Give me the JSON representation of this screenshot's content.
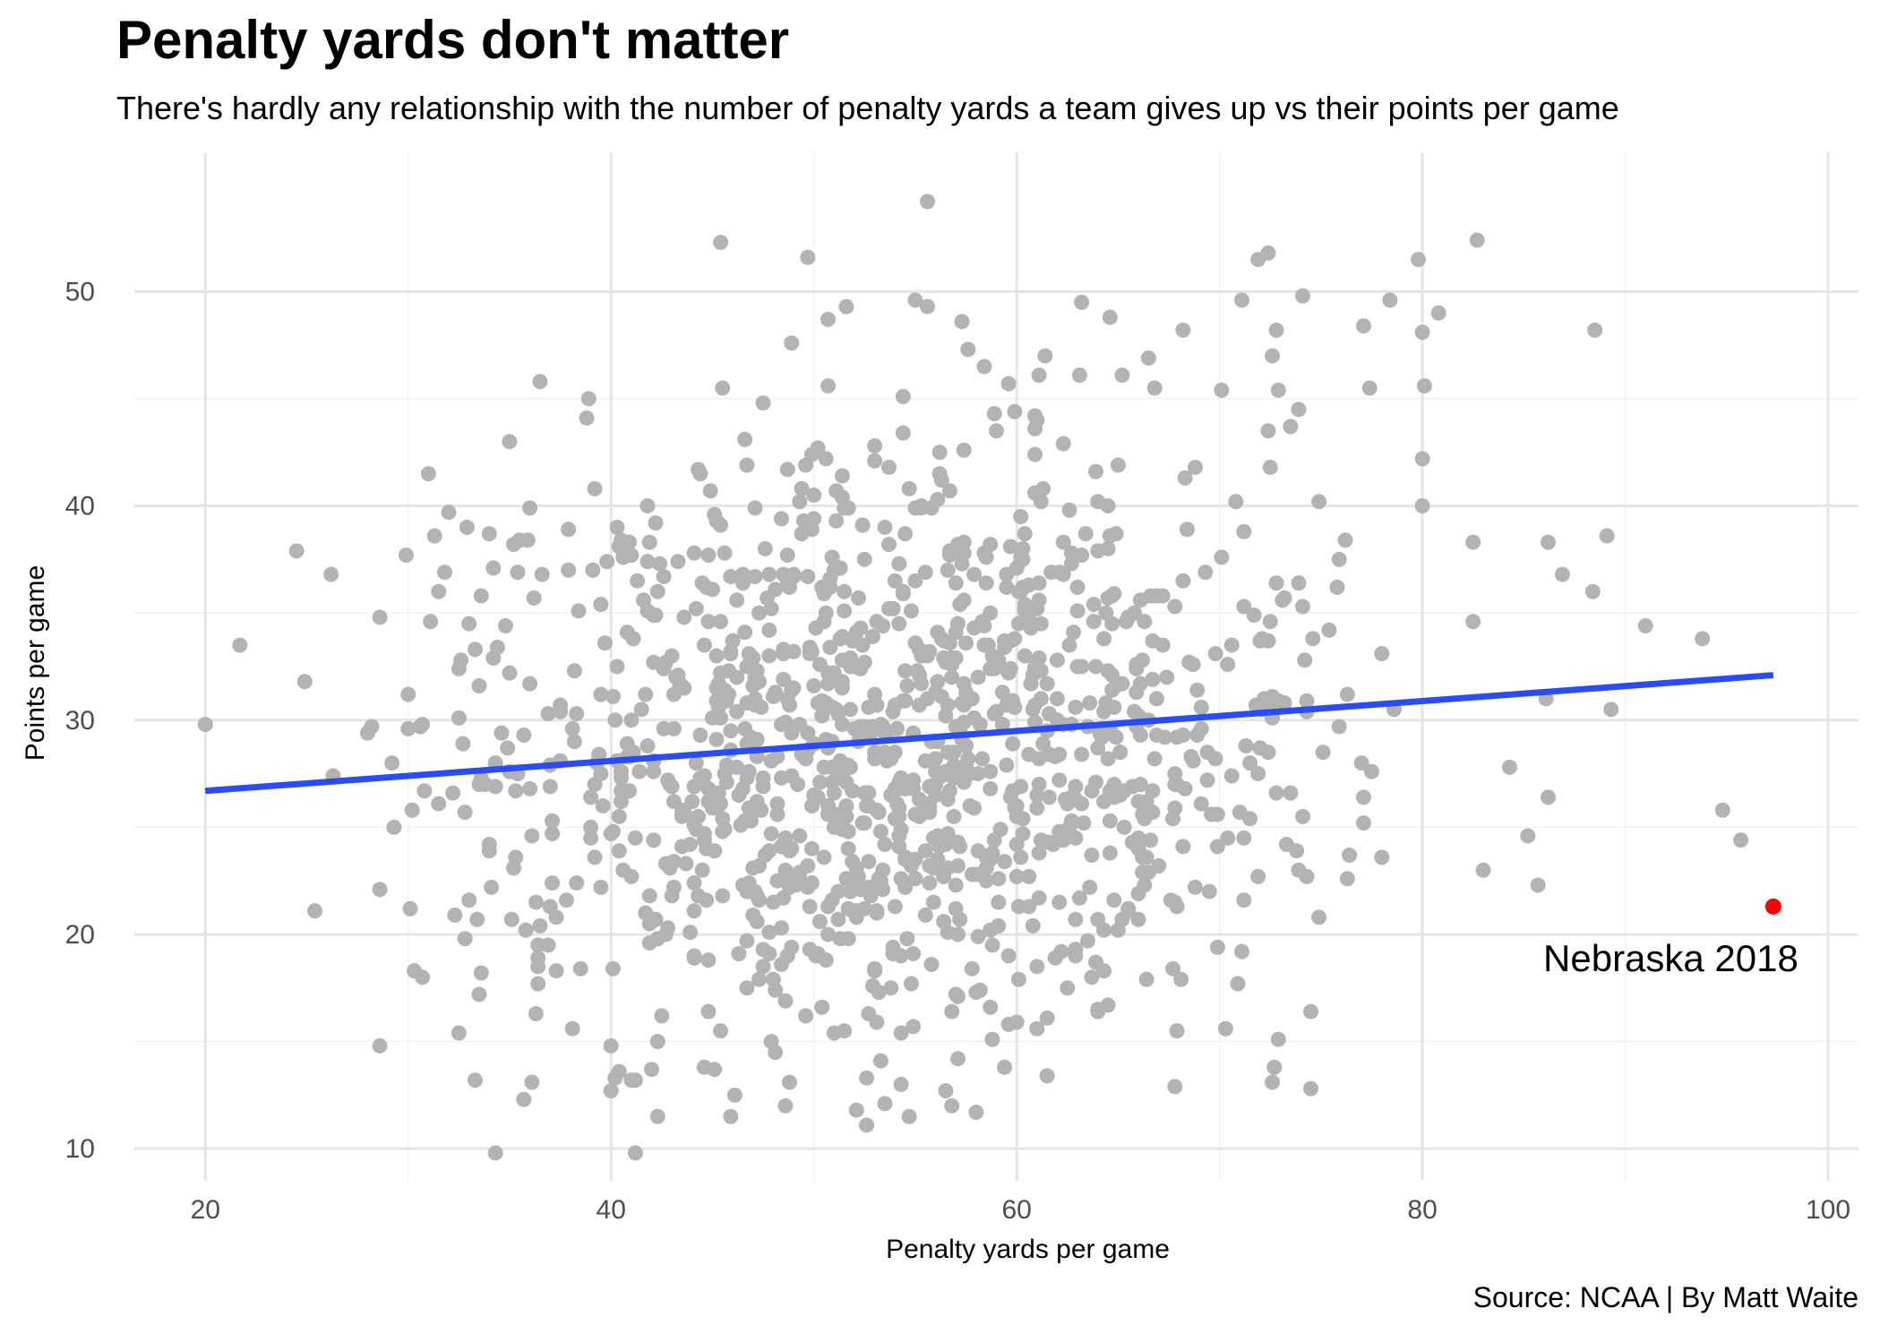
{
  "chart_data": {
    "type": "scatter",
    "title": "Penalty yards don't matter",
    "subtitle": "There's hardly any relationship with the number of penalty yards a team gives up vs their points per game",
    "caption": "Source: NCAA | By Matt Waite",
    "xlabel": "Penalty yards per game",
    "ylabel": "Points per game",
    "xlim": [
      16.5,
      101.5
    ],
    "ylim": [
      8.5,
      56.5
    ],
    "x_ticks": [
      20,
      40,
      60,
      80,
      100
    ],
    "y_ticks": [
      10,
      20,
      30,
      40,
      50
    ],
    "grid": true,
    "point_color": "#b3b3b3",
    "highlight_color": "#ff0000",
    "trend_color": "#2b4bf5",
    "trend_line": {
      "x": [
        20,
        97.3
      ],
      "y": [
        26.7,
        32.1
      ]
    },
    "highlight": {
      "label": "Nebraska 2018",
      "x": 97.3,
      "y": 21.3
    },
    "n_points": 1300,
    "points_sample": [
      [
        20.0,
        29.8
      ],
      [
        21.7,
        33.5
      ],
      [
        24.5,
        37.9
      ],
      [
        24.9,
        31.8
      ],
      [
        25.4,
        21.1
      ],
      [
        26.2,
        36.8
      ],
      [
        26.3,
        27.4
      ],
      [
        28.0,
        29.4
      ],
      [
        28.2,
        29.7
      ],
      [
        28.6,
        34.8
      ],
      [
        28.6,
        22.1
      ],
      [
        28.6,
        14.8
      ],
      [
        29.3,
        25.0
      ],
      [
        30.0,
        31.2
      ],
      [
        30.2,
        25.8
      ],
      [
        30.3,
        18.3
      ],
      [
        31.0,
        41.5
      ],
      [
        31.3,
        38.6
      ],
      [
        31.5,
        36.0
      ],
      [
        32.0,
        39.7
      ],
      [
        32.3,
        20.9
      ],
      [
        32.6,
        32.8
      ],
      [
        32.8,
        19.8
      ],
      [
        34.0,
        38.7
      ],
      [
        34.3,
        9.8
      ],
      [
        35.2,
        38.2
      ],
      [
        35.5,
        38.4
      ],
      [
        36.5,
        20.4
      ],
      [
        38.9,
        45.0
      ],
      [
        38.8,
        44.1
      ],
      [
        39.8,
        37.4
      ],
      [
        41.2,
        9.8
      ],
      [
        42.5,
        16.2
      ],
      [
        44.1,
        37.8
      ],
      [
        44.6,
        13.8
      ],
      [
        45.4,
        52.3
      ],
      [
        45.5,
        45.5
      ],
      [
        45.9,
        11.5
      ],
      [
        47.5,
        44.8
      ],
      [
        48.6,
        12.0
      ],
      [
        49.7,
        51.6
      ],
      [
        50.7,
        48.7
      ],
      [
        50.7,
        45.6
      ],
      [
        51.6,
        49.3
      ],
      [
        52.1,
        11.8
      ],
      [
        52.6,
        11.1
      ],
      [
        54.4,
        45.1
      ],
      [
        55.0,
        49.6
      ],
      [
        55.6,
        54.2
      ],
      [
        56.5,
        12.7
      ],
      [
        56.8,
        12.0
      ],
      [
        57.3,
        48.6
      ],
      [
        58.4,
        46.5
      ],
      [
        59.6,
        45.7
      ],
      [
        61.4,
        47.0
      ],
      [
        64.6,
        48.8
      ],
      [
        65.2,
        46.1
      ],
      [
        66.8,
        45.5
      ],
      [
        67.8,
        12.9
      ],
      [
        68.2,
        48.2
      ],
      [
        70.1,
        45.4
      ],
      [
        71.1,
        49.6
      ],
      [
        71.9,
        51.5
      ],
      [
        72.4,
        51.8
      ],
      [
        72.7,
        13.8
      ],
      [
        72.6,
        13.1
      ],
      [
        72.9,
        45.4
      ],
      [
        74.5,
        12.8
      ],
      [
        74.5,
        16.4
      ],
      [
        74.9,
        40.2
      ],
      [
        77.1,
        48.4
      ],
      [
        77.4,
        45.5
      ],
      [
        79.8,
        51.5
      ],
      [
        80.0,
        48.1
      ],
      [
        80.1,
        45.6
      ],
      [
        80.8,
        49.0
      ],
      [
        80.0,
        42.2
      ],
      [
        80.0,
        40.0
      ],
      [
        82.7,
        52.4
      ],
      [
        82.5,
        38.3
      ],
      [
        83.0,
        23.0
      ],
      [
        84.3,
        27.8
      ],
      [
        85.2,
        24.6
      ],
      [
        85.7,
        22.3
      ],
      [
        86.2,
        38.3
      ],
      [
        86.2,
        26.4
      ],
      [
        86.9,
        36.8
      ],
      [
        88.4,
        36.0
      ],
      [
        88.5,
        48.2
      ],
      [
        89.1,
        38.6
      ],
      [
        89.3,
        30.5
      ],
      [
        91.0,
        34.4
      ],
      [
        93.8,
        33.8
      ],
      [
        94.8,
        25.8
      ],
      [
        95.7,
        24.4
      ],
      [
        86.1,
        31.0
      ],
      [
        82.5,
        34.6
      ]
    ]
  }
}
